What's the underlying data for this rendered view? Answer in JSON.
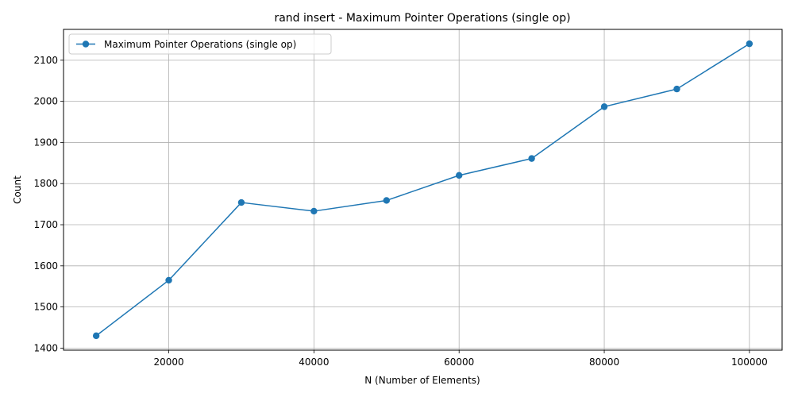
{
  "chart_data": {
    "type": "line",
    "title": "rand insert - Maximum Pointer Operations (single op)",
    "xlabel": "N (Number of Elements)",
    "ylabel": "Count",
    "xlim": [
      5500,
      104500
    ],
    "ylim": [
      1395,
      2175
    ],
    "x_ticks": [
      20000,
      40000,
      60000,
      80000,
      100000
    ],
    "x_tick_labels": [
      "20000",
      "40000",
      "60000",
      "80000",
      "100000"
    ],
    "y_ticks": [
      1400,
      1500,
      1600,
      1700,
      1800,
      1900,
      2000,
      2100
    ],
    "y_tick_labels": [
      "1400",
      "1500",
      "1600",
      "1700",
      "1800",
      "1900",
      "2000",
      "2100"
    ],
    "grid": true,
    "legend_position": "upper-left",
    "marker": "circle",
    "series": [
      {
        "name": "Maximum Pointer Operations (single op)",
        "color": "#1f77b4",
        "x": [
          10000,
          20000,
          30000,
          40000,
          50000,
          60000,
          70000,
          80000,
          90000,
          100000
        ],
        "y": [
          1430,
          1565,
          1754,
          1733,
          1759,
          1820,
          1861,
          1987,
          2030,
          2140
        ]
      }
    ]
  }
}
